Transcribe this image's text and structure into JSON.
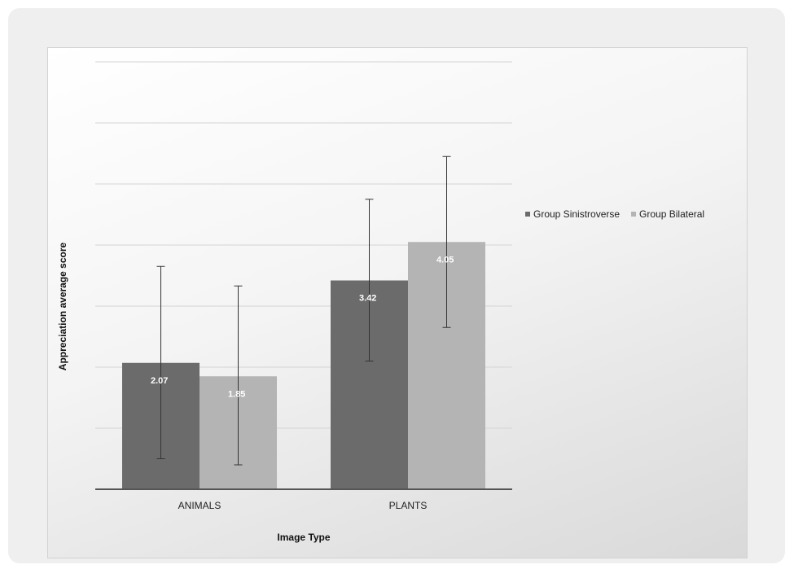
{
  "chart_data": {
    "type": "bar",
    "title": "",
    "xlabel": "Image Type",
    "ylabel": "Appreciation average score",
    "categories": [
      "ANIMALS",
      "PLANTS"
    ],
    "ylim": [
      0,
      7
    ],
    "grid": true,
    "legend_position": "right",
    "series": [
      {
        "name": "Group Sinistroverse",
        "color": "#6b6b6b",
        "values": [
          2.07,
          3.42
        ],
        "error_low": [
          0.5,
          2.1
        ],
        "error_high": [
          3.65,
          4.75
        ]
      },
      {
        "name": "Group Bilateral",
        "color": "#b4b4b4",
        "values": [
          1.85,
          4.05
        ],
        "error_low": [
          0.4,
          2.65
        ],
        "error_high": [
          3.33,
          5.45
        ]
      }
    ],
    "data_labels": [
      [
        "2.07",
        "3.42"
      ],
      [
        "1.85",
        "4.05"
      ]
    ]
  }
}
